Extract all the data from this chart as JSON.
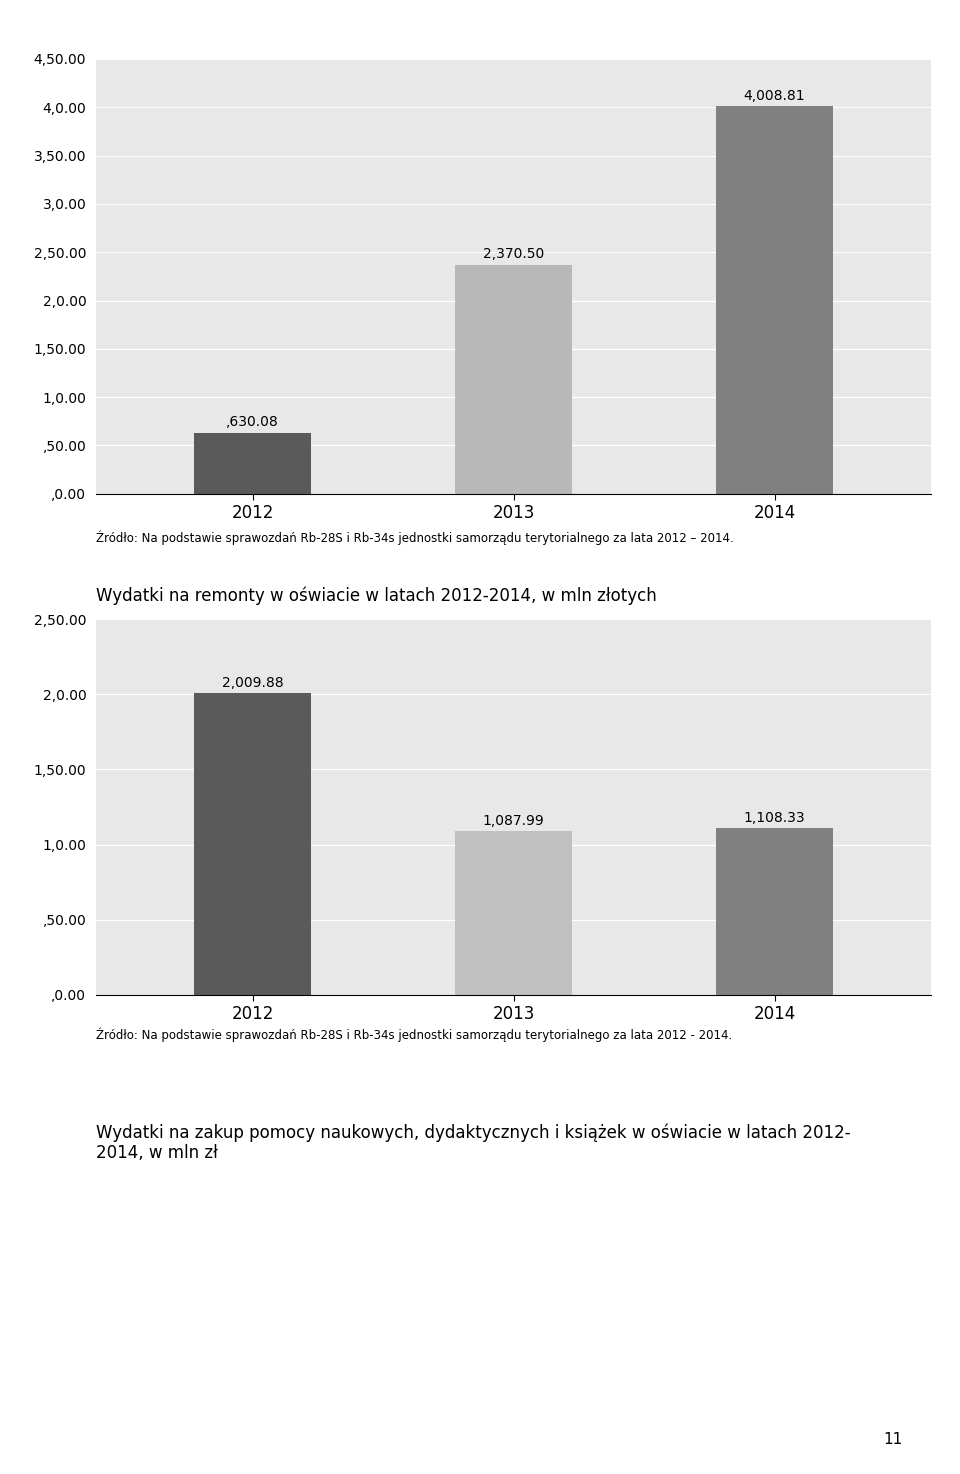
{
  "chart1": {
    "categories": [
      "2012",
      "2013",
      "2014"
    ],
    "values": [
      0.63008,
      2.3705,
      4.00881
    ],
    "bar_colors": [
      "#5a5a5a",
      "#b8b8b8",
      "#808080"
    ],
    "bar_labels": [
      ",630.08",
      "2,370.50",
      "4,008.81"
    ],
    "ylim": [
      0,
      4.5
    ],
    "yticks": [
      0.0,
      0.5,
      1.0,
      1.5,
      2.0,
      2.5,
      3.0,
      3.5,
      4.0,
      4.5
    ],
    "ytick_labels": [
      ",0.00",
      ",50.00",
      "1,0.00",
      "1,50.00",
      "2,0.00",
      "2,50.00",
      "3,0.00",
      "3,50.00",
      "4,0.00",
      "4,50.00"
    ],
    "source_text": "Źródło: Na podstawie sprawozdań Rb-28S i Rb-34s jednostki samorządu terytorialnego za lata 2012 – 2014.",
    "bg_color": "#e8e8e8"
  },
  "title2": "Wydatki na remonty w oświacie w latach 2012-2014, w mln złotych",
  "chart2": {
    "categories": [
      "2012",
      "2013",
      "2014"
    ],
    "values": [
      2.00988,
      1.08799,
      1.10833
    ],
    "bar_colors": [
      "#5a5a5a",
      "#c0c0c0",
      "#808080"
    ],
    "bar_labels": [
      "2,009.88",
      "1,087.99",
      "1,108.33"
    ],
    "ylim": [
      0,
      2.5
    ],
    "yticks": [
      0.0,
      0.5,
      1.0,
      1.5,
      2.0,
      2.5
    ],
    "ytick_labels": [
      ",0.00",
      ",50.00",
      "1,0.00",
      "1,50.00",
      "2,0.00",
      "2,50.00"
    ],
    "source_text": "Źródło: Na podstawie sprawozdań Rb-28S i Rb-34s jednostki samorządu terytorialnego za lata 2012 - 2014.",
    "bg_color": "#e8e8e8"
  },
  "title3": "Wydatki na zakup pomocy naukowych, dydaktycznych i książek w oświacie w latach 2012-\n2014, w mln zł",
  "page_number": "11",
  "fig_bg": "#ffffff"
}
